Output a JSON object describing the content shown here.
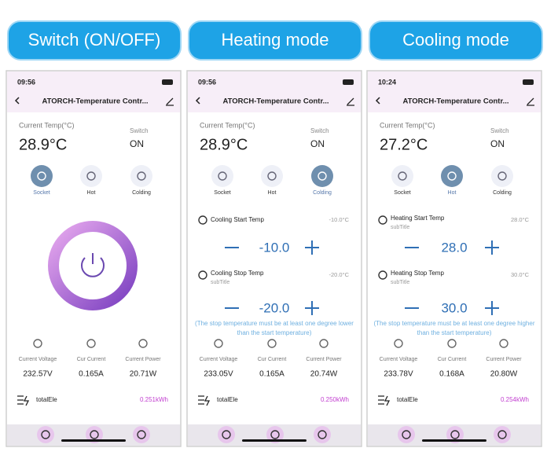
{
  "pills": [
    "Switch (ON/OFF)",
    "Heating mode",
    "Cooling mode"
  ],
  "phones": [
    {
      "time": "09:56",
      "title": "ATORCH-Temperature Contr...",
      "temp_label": "Current Temp(°C)",
      "temp": "28.9°C",
      "switch_label": "Switch",
      "switch_value": "ON",
      "modes": [
        {
          "label": "Socket",
          "active": true
        },
        {
          "label": "Hot",
          "active": false
        },
        {
          "label": "Colding",
          "active": false
        }
      ],
      "stats": [
        {
          "label": "Current Voltage",
          "value": "232.57V"
        },
        {
          "label": "Cur Current",
          "value": "0.165A"
        },
        {
          "label": "Current Power",
          "value": "20.71W"
        }
      ],
      "total_label": "totalEle",
      "total_value": "0.251kWh"
    },
    {
      "time": "09:56",
      "title": "ATORCH-Temperature Contr...",
      "temp_label": "Current Temp(°C)",
      "temp": "28.9°C",
      "switch_label": "Switch",
      "switch_value": "ON",
      "modes": [
        {
          "label": "Socket",
          "active": false
        },
        {
          "label": "Hot",
          "active": false
        },
        {
          "label": "Colding",
          "active": true
        }
      ],
      "settings": [
        {
          "title": "Cooling Start Temp",
          "current": "-10.0°C",
          "value": "-10.0"
        },
        {
          "title": "Cooling Stop Temp",
          "subtitle": "subTitle",
          "current": "-20.0°C",
          "value": "-20.0"
        }
      ],
      "warning": "(The stop temperature must be at least one degree lower than the start temperature)",
      "stats": [
        {
          "label": "Current Voltage",
          "value": "233.05V"
        },
        {
          "label": "Cur Current",
          "value": "0.165A"
        },
        {
          "label": "Current Power",
          "value": "20.74W"
        }
      ],
      "total_label": "totalEle",
      "total_value": "0.250kWh"
    },
    {
      "time": "10:24",
      "title": "ATORCH-Temperature Contr...",
      "temp_label": "Current Temp(°C)",
      "temp": "27.2°C",
      "switch_label": "Switch",
      "switch_value": "ON",
      "modes": [
        {
          "label": "Socket",
          "active": false
        },
        {
          "label": "Hot",
          "active": true
        },
        {
          "label": "Colding",
          "active": false
        }
      ],
      "settings": [
        {
          "title": "Heating Start Temp",
          "subtitle": "subTitle",
          "current": "28.0°C",
          "value": "28.0"
        },
        {
          "title": "Heating Stop Temp",
          "subtitle": "subTitle",
          "current": "30.0°C",
          "value": "30.0"
        }
      ],
      "warning": "(The stop temperature must be at least one degree higher than the start temperature)",
      "stats": [
        {
          "label": "Current Voltage",
          "value": "233.78V"
        },
        {
          "label": "Cur Current",
          "value": "0.168A"
        },
        {
          "label": "Current Power",
          "value": "20.80W"
        }
      ],
      "total_label": "totalEle",
      "total_value": "0.254kWh"
    }
  ]
}
